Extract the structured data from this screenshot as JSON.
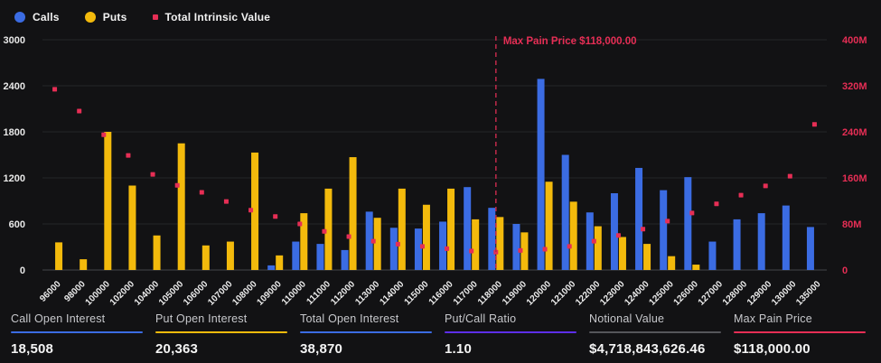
{
  "legend": {
    "items": [
      {
        "label": "Calls",
        "color": "#3B6CE3",
        "shape": "circle"
      },
      {
        "label": "Puts",
        "color": "#F3BA0C",
        "shape": "circle"
      },
      {
        "label": "Total Intrinsic Value",
        "color": "#E62E55",
        "shape": "square"
      }
    ]
  },
  "chart_data": {
    "type": "bar",
    "categories": [
      "96000",
      "98000",
      "100000",
      "102000",
      "104000",
      "105000",
      "106000",
      "107000",
      "108000",
      "109000",
      "110000",
      "111000",
      "112000",
      "113000",
      "114000",
      "115000",
      "116000",
      "117000",
      "118000",
      "119000",
      "120000",
      "121000",
      "122000",
      "123000",
      "124000",
      "125000",
      "126000",
      "127000",
      "128000",
      "129000",
      "130000",
      "135000"
    ],
    "series": [
      {
        "name": "Calls",
        "type": "bar",
        "axis": "left",
        "color": "#3B6CE3",
        "values": [
          0,
          0,
          0,
          0,
          0,
          0,
          0,
          0,
          0,
          60,
          370,
          340,
          260,
          760,
          550,
          540,
          630,
          1080,
          810,
          600,
          2490,
          1500,
          750,
          1000,
          1330,
          1040,
          1210,
          370,
          660,
          740,
          840,
          560
        ]
      },
      {
        "name": "Puts",
        "type": "bar",
        "axis": "left",
        "color": "#F3BA0C",
        "values": [
          360,
          140,
          1800,
          1100,
          450,
          1650,
          320,
          370,
          1530,
          190,
          740,
          1060,
          1470,
          680,
          1060,
          850,
          1060,
          660,
          690,
          490,
          1150,
          890,
          570,
          430,
          340,
          180,
          70,
          0,
          0,
          0,
          0,
          0
        ]
      },
      {
        "name": "Total Intrinsic Value",
        "type": "scatter",
        "axis": "right",
        "color": "#E62E55",
        "values_millions": [
          314,
          276,
          235,
          199,
          166,
          147,
          135,
          119,
          104,
          93,
          80,
          67,
          58,
          50,
          45,
          41,
          37,
          33,
          31,
          34,
          36,
          41,
          50,
          60,
          71,
          85,
          99,
          115,
          130,
          146,
          163,
          253
        ]
      }
    ],
    "left_axis": {
      "min": 0,
      "max": 3000,
      "ticks": [
        "3000",
        "2400",
        "1800",
        "1200",
        "600",
        "0"
      ],
      "color": "#E8E8E8"
    },
    "right_axis": {
      "min": 0,
      "max": 400,
      "ticks": [
        "400M",
        "320M",
        "240M",
        "160M",
        "80M",
        "0"
      ],
      "color": "#E62E55"
    },
    "annotation": {
      "label": "Max Pain Price $118,000.00",
      "category": "118000",
      "line_color": "#B62847",
      "text_color": "#E62E55"
    },
    "grid": true,
    "legend_position": "top-left"
  },
  "stats": [
    {
      "label": "Call Open Interest",
      "value": "18,508",
      "underline": "#3B6CE3"
    },
    {
      "label": "Put Open Interest",
      "value": "20,363",
      "underline": "#F3BA0C"
    },
    {
      "label": "Total Open Interest",
      "value": "38,870",
      "underline": "#3B6CE3"
    },
    {
      "label": "Put/Call Ratio",
      "value": "1.10",
      "underline": "#5D2EE8"
    },
    {
      "label": "Notional Value",
      "value": "$4,718,843,626.46",
      "underline": "#55565A"
    },
    {
      "label": "Max Pain Price",
      "value": "$118,000.00",
      "underline": "#E62E55"
    }
  ]
}
